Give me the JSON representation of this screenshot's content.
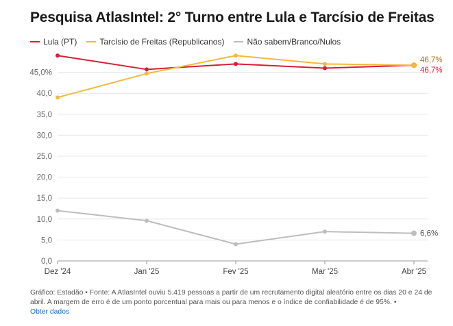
{
  "chart_data": {
    "type": "line",
    "title": "Pesquisa AtlasIntel: 2° Turno entre Lula e Tarcísio de Freitas",
    "categories": [
      "Dez '24",
      "Jan '25",
      "Fev '25",
      "Mar '25",
      "Abr '25"
    ],
    "yticks": [
      "0,0",
      "5,0",
      "10,0",
      "15,0",
      "20,0",
      "25,0",
      "30,0",
      "35,0",
      "40,0",
      "45,0%"
    ],
    "ylim": [
      0,
      50
    ],
    "grid": true,
    "legend_position": "top-left",
    "series": [
      {
        "name": "Lula (PT)",
        "color": "#d51f35",
        "values": [
          49.0,
          45.7,
          47.0,
          46.0,
          46.7
        ],
        "end_label": "46,7%"
      },
      {
        "name": "Tarcísio de Freitas (Republicanos)",
        "color": "#f2b93b",
        "values": [
          39.0,
          44.7,
          49.0,
          47.0,
          46.7
        ],
        "end_label": "46,7%",
        "end_label_color": "#a8741a"
      },
      {
        "name": "Não sabem/Branco/Nulos",
        "color": "#bdbdbd",
        "values": [
          12.0,
          9.6,
          4.0,
          7.0,
          6.6
        ],
        "end_label": "6,6%",
        "end_label_color": "#555555"
      }
    ]
  },
  "footer": {
    "source": "Gráfico: Estadão • Fonte: A AtlasIntel ouviu 5.419 pessoas a partir de um recrutamento digital aleatório entre os dias 20 e 24 de abril. A margem de erro é de um ponto porcentual para mais ou para menos e o índice de confiabilidade é de 95%. •",
    "link_label": "Obter dados"
  }
}
